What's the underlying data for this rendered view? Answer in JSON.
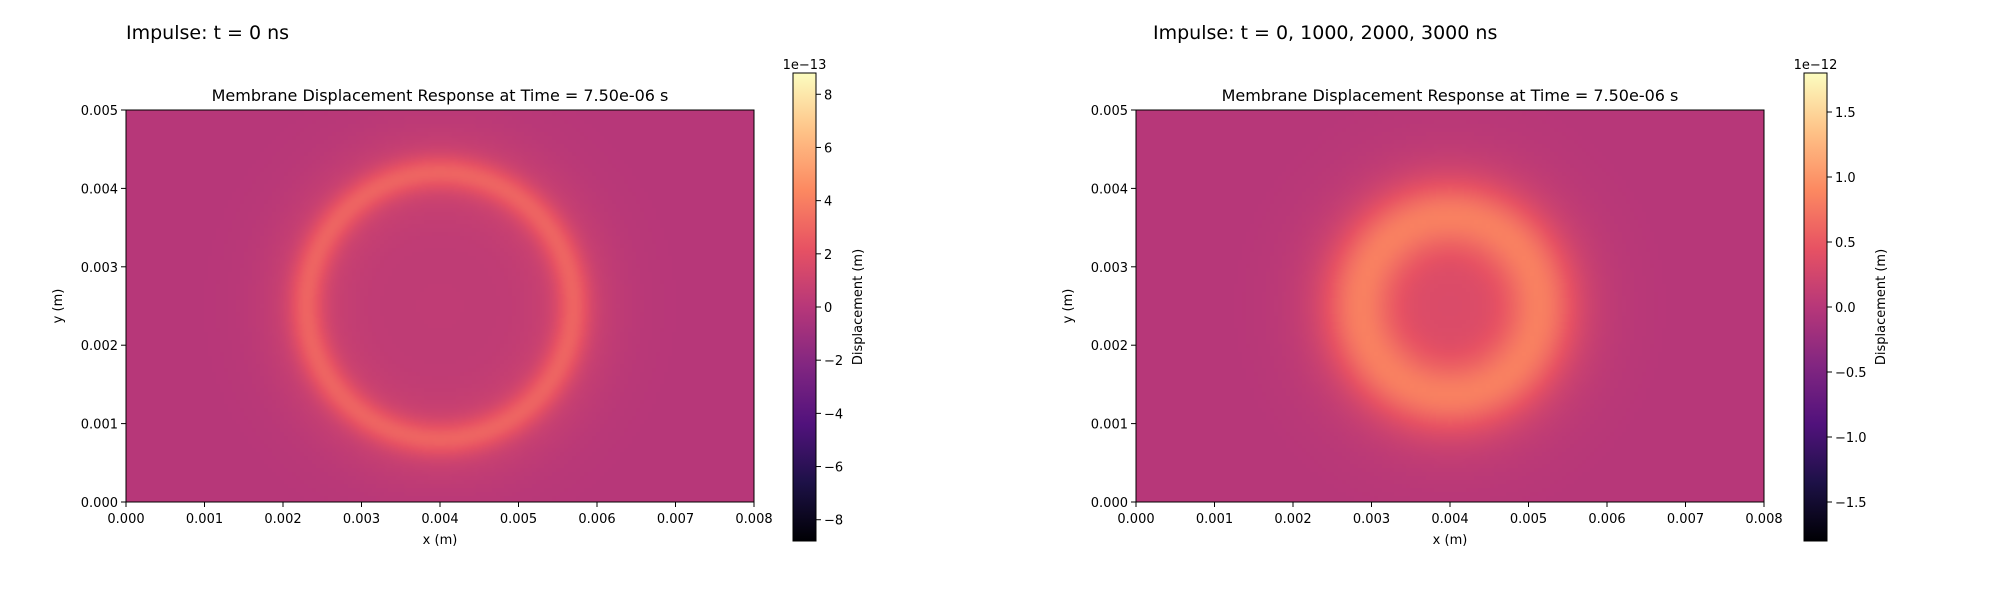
{
  "panels": [
    {
      "heading": "Impulse: t = 0 ns"
    },
    {
      "heading": "Impulse: t = 0, 1000, 2000, 3000 ns"
    }
  ],
  "colormap": {
    "name": "magma",
    "stops": [
      "#000004",
      "#1d1147",
      "#51127c",
      "#822681",
      "#b73779",
      "#e75263",
      "#fc8961",
      "#fec287",
      "#fcfdbf"
    ]
  },
  "chart_data": [
    {
      "type": "heatmap",
      "title": "Membrane Displacement Response at Time = 7.50e-06 s",
      "xlabel": "x (m)",
      "ylabel": "y (m)",
      "xlim": [
        0.0,
        0.008
      ],
      "ylim": [
        0.0,
        0.005
      ],
      "xticks": [
        "0.000",
        "0.001",
        "0.002",
        "0.003",
        "0.004",
        "0.005",
        "0.006",
        "0.007",
        "0.008"
      ],
      "yticks": [
        "0.000",
        "0.001",
        "0.002",
        "0.003",
        "0.004",
        "0.005"
      ],
      "colorbar": {
        "label": "Displacement (m)",
        "offset_text": "1e−13",
        "range": [
          -8.8,
          8.8
        ],
        "ticks": [
          -8,
          -6,
          -4,
          -2,
          0,
          2,
          4,
          6,
          8
        ],
        "tick_labels": [
          "−8",
          "−6",
          "−4",
          "−2",
          "0",
          "2",
          "4",
          "6",
          "8"
        ]
      },
      "field": {
        "center": [
          0.004,
          0.0025
        ],
        "background": 0.0,
        "components": [
          {
            "kind": "ring",
            "radius": 0.0017,
            "width": 0.00022,
            "amplitude": 2.0
          },
          {
            "kind": "ring",
            "radius": 0.0017,
            "width": 0.0006,
            "amplitude": 0.8
          },
          {
            "kind": "disk",
            "radius": 0.0017,
            "amplitude": 0.4
          }
        ]
      }
    },
    {
      "type": "heatmap",
      "title": "Membrane Displacement Response at Time = 7.50e-06 s",
      "xlabel": "x (m)",
      "ylabel": "y (m)",
      "xlim": [
        0.0,
        0.008
      ],
      "ylim": [
        0.0,
        0.005
      ],
      "xticks": [
        "0.000",
        "0.001",
        "0.002",
        "0.003",
        "0.004",
        "0.005",
        "0.006",
        "0.007",
        "0.008"
      ],
      "yticks": [
        "0.000",
        "0.001",
        "0.002",
        "0.003",
        "0.004",
        "0.005"
      ],
      "colorbar": {
        "label": "Displacement (m)",
        "offset_text": "1e−12",
        "range": [
          -1.8,
          1.8
        ],
        "ticks": [
          -1.5,
          -1.0,
          -0.5,
          0.0,
          0.5,
          1.0,
          1.5
        ],
        "tick_labels": [
          "−1.5",
          "−1.0",
          "−0.5",
          "0.0",
          "0.5",
          "1.0",
          "1.5"
        ]
      },
      "field": {
        "center": [
          0.004,
          0.0025
        ],
        "background": 0.0,
        "components": [
          {
            "kind": "ring",
            "radius": 0.00115,
            "width": 0.00045,
            "amplitude": 0.55
          },
          {
            "kind": "ring",
            "radius": 0.0012,
            "width": 0.0008,
            "amplitude": 0.22
          },
          {
            "kind": "disk",
            "radius": 0.0009,
            "amplitude": 0.3
          }
        ]
      }
    }
  ]
}
